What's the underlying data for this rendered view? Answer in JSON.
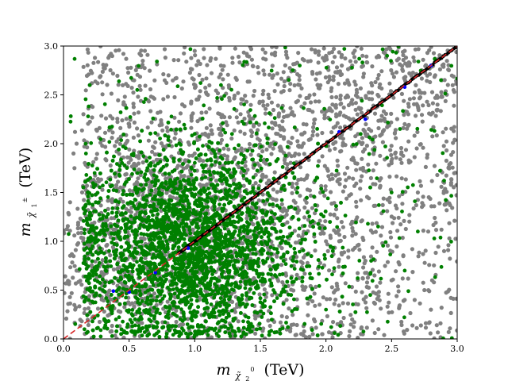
{
  "chart_data": {
    "type": "scatter",
    "title": "",
    "xlabel": {
      "prefix": "m",
      "sub": "χ̃",
      "subsub": "2",
      "sup": "0",
      "unit": "(TeV)"
    },
    "ylabel": {
      "prefix": "m",
      "sub": "χ̃",
      "subsub": "1",
      "sup": "±",
      "unit": "(TeV)"
    },
    "xlim": [
      0.0,
      3.0
    ],
    "ylim": [
      0.0,
      3.0
    ],
    "xticks": [
      "0.0",
      "0.5",
      "1.0",
      "1.5",
      "2.0",
      "2.5",
      "3.0"
    ],
    "yticks": [
      "0.0",
      "0.5",
      "1.0",
      "1.5",
      "2.0",
      "2.5",
      "3.0"
    ],
    "grid": false,
    "legend": "none",
    "series": [
      {
        "color": "#808080",
        "description_points": "broad cloud of points across full plane, densest below diagonal",
        "sample_points": [
          [
            0.1,
            2.0
          ],
          [
            0.2,
            2.6
          ],
          [
            0.35,
            2.9
          ],
          [
            0.5,
            2.2
          ],
          [
            0.6,
            1.9
          ],
          [
            0.8,
            2.7
          ],
          [
            1.0,
            2.95
          ],
          [
            1.1,
            2.5
          ],
          [
            1.2,
            2.8
          ],
          [
            1.4,
            2.9
          ],
          [
            1.6,
            2.7
          ],
          [
            1.8,
            2.6
          ],
          [
            2.0,
            2.9
          ],
          [
            2.2,
            2.8
          ],
          [
            2.4,
            2.9
          ],
          [
            2.6,
            2.95
          ],
          [
            2.0,
            1.0
          ],
          [
            2.2,
            1.2
          ],
          [
            2.3,
            0.8
          ],
          [
            2.5,
            0.6
          ],
          [
            2.6,
            0.4
          ],
          [
            2.8,
            0.3
          ],
          [
            2.9,
            0.9
          ],
          [
            2.7,
            1.5
          ],
          [
            2.5,
            1.8
          ],
          [
            2.2,
            0.2
          ],
          [
            2.4,
            0.1
          ],
          [
            2.75,
            0.5
          ],
          [
            2.9,
            1.6
          ],
          [
            2.6,
            2.2
          ],
          [
            0.15,
            1.0
          ],
          [
            0.1,
            0.7
          ],
          [
            0.05,
            1.4
          ],
          [
            1.9,
            0.05
          ],
          [
            1.7,
            0.4
          ],
          [
            2.85,
            2.4
          ],
          [
            2.95,
            1.8
          ],
          [
            2.8,
            2.3
          ]
        ]
      },
      {
        "color": "#008000",
        "description_points": "dense green cluster centered near (1.0, 1.0)",
        "sample_points": [
          [
            0.3,
            0.5
          ],
          [
            0.5,
            1.2
          ],
          [
            0.7,
            1.6
          ],
          [
            0.9,
            1.9
          ],
          [
            1.0,
            2.1
          ],
          [
            1.2,
            1.7
          ],
          [
            1.4,
            1.3
          ],
          [
            1.5,
            0.9
          ],
          [
            1.6,
            0.5
          ],
          [
            1.3,
            0.2
          ],
          [
            0.8,
            0.1
          ],
          [
            0.4,
            0.2
          ],
          [
            0.6,
            0.7
          ],
          [
            1.1,
            1.0
          ],
          [
            1.2,
            2.6
          ],
          [
            0.2,
            2.6
          ],
          [
            1.8,
            2.8
          ],
          [
            2.7,
            1.1
          ],
          [
            2.5,
            1.5
          ],
          [
            2.6,
            0.7
          ],
          [
            2.0,
            0.3
          ],
          [
            1.75,
            0.8
          ]
        ]
      },
      {
        "color": "#000000",
        "description_points": "points along the diagonal from (0.9,0.9) to (3.0,3.0)",
        "line": [
          [
            0.88,
            0.88
          ],
          [
            3.0,
            3.0
          ]
        ]
      },
      {
        "color": "#0000ff",
        "description_points": "sparse points along the diagonal",
        "sample_points": [
          [
            0.38,
            0.49
          ],
          [
            0.5,
            0.48
          ],
          [
            0.7,
            0.68
          ],
          [
            0.95,
            0.93
          ],
          [
            2.1,
            2.12
          ],
          [
            2.3,
            2.25
          ],
          [
            2.6,
            2.58
          ],
          [
            2.8,
            2.8
          ]
        ]
      }
    ],
    "reference_line": {
      "color": "#d62728",
      "style": "dashed",
      "x": [
        0.0,
        3.0
      ],
      "y": [
        0.0,
        3.0
      ]
    }
  }
}
